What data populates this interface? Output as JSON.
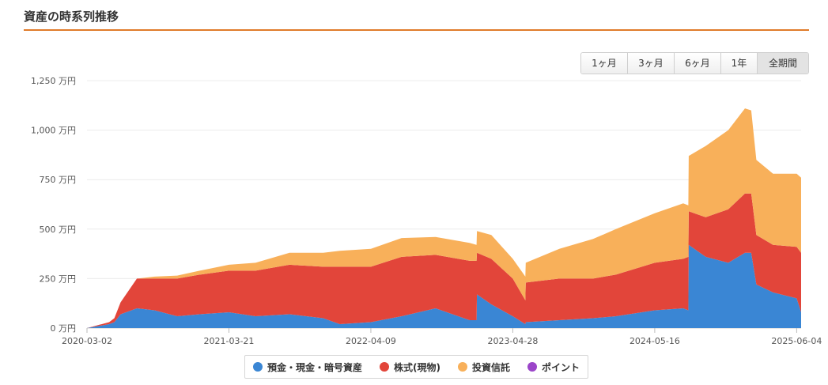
{
  "header": {
    "title": "資産の時系列推移"
  },
  "range_buttons": [
    {
      "label": "1ヶ月",
      "active": false
    },
    {
      "label": "3ヶ月",
      "active": false
    },
    {
      "label": "6ヶ月",
      "active": false
    },
    {
      "label": "1年",
      "active": false
    },
    {
      "label": "全期間",
      "active": true
    }
  ],
  "chart_data": {
    "type": "area",
    "stacked": true,
    "y_unit": "万円",
    "ylim": [
      0,
      1250
    ],
    "yticks": [
      "0 万円",
      "250 万円",
      "500 万円",
      "750 万円",
      "1,000 万円",
      "1,250 万円"
    ],
    "xlim": [
      "2020-03-02",
      "2025-06-16"
    ],
    "xticks": [
      "2020-03-02",
      "2021-03-21",
      "2022-04-09",
      "2023-04-28",
      "2024-05-16",
      "2025-06-04"
    ],
    "grid": true,
    "legend_position": "bottom",
    "x": [
      "2020-03-02",
      "2020-05-01",
      "2020-05-15",
      "2020-06-01",
      "2020-07-15",
      "2020-07-16",
      "2020-09-01",
      "2020-11-01",
      "2021-01-01",
      "2021-03-21",
      "2021-06-01",
      "2021-09-01",
      "2021-12-01",
      "2022-01-15",
      "2022-04-09",
      "2022-07-01",
      "2022-10-01",
      "2023-01-01",
      "2023-01-20",
      "2023-01-21",
      "2023-03-01",
      "2023-04-28",
      "2023-06-01",
      "2023-06-02",
      "2023-09-01",
      "2023-12-01",
      "2024-02-01",
      "2024-05-16",
      "2024-08-01",
      "2024-08-15",
      "2024-08-16",
      "2024-10-01",
      "2024-12-01",
      "2025-01-15",
      "2025-02-01",
      "2025-02-15",
      "2025-04-01",
      "2025-06-04",
      "2025-06-16"
    ],
    "series": [
      {
        "name": "預金・現金・暗号資産",
        "color": "#3a86d4",
        "values": [
          0,
          20,
          30,
          70,
          100,
          100,
          90,
          60,
          70,
          80,
          60,
          70,
          50,
          20,
          30,
          60,
          100,
          40,
          40,
          170,
          120,
          60,
          20,
          30,
          40,
          50,
          60,
          90,
          100,
          90,
          420,
          360,
          330,
          380,
          380,
          220,
          180,
          150,
          80
        ]
      },
      {
        "name": "株式(現物)",
        "color": "#e2453a",
        "values": [
          0,
          10,
          20,
          60,
          150,
          150,
          160,
          190,
          200,
          210,
          230,
          250,
          260,
          290,
          280,
          300,
          270,
          300,
          300,
          210,
          230,
          190,
          120,
          200,
          210,
          200,
          210,
          240,
          250,
          270,
          170,
          200,
          270,
          300,
          300,
          250,
          240,
          260,
          300
        ]
      },
      {
        "name": "投資信託",
        "color": "#f8b05a",
        "values": [
          0,
          0,
          0,
          0,
          0,
          0,
          10,
          15,
          20,
          30,
          40,
          60,
          70,
          80,
          90,
          95,
          90,
          90,
          80,
          110,
          120,
          100,
          120,
          100,
          150,
          200,
          230,
          250,
          280,
          260,
          280,
          360,
          400,
          430,
          420,
          380,
          360,
          370,
          380
        ]
      },
      {
        "name": "ポイント",
        "color": "#9b45c9",
        "values": [
          0,
          0,
          0,
          0,
          0,
          0,
          0,
          0,
          0,
          0,
          0,
          0,
          0,
          0,
          0,
          0,
          0,
          0,
          0,
          0,
          0,
          0,
          0,
          0,
          0,
          0,
          0,
          0,
          0,
          0,
          0,
          0,
          0,
          0,
          0,
          0,
          0,
          0,
          0
        ]
      }
    ]
  }
}
